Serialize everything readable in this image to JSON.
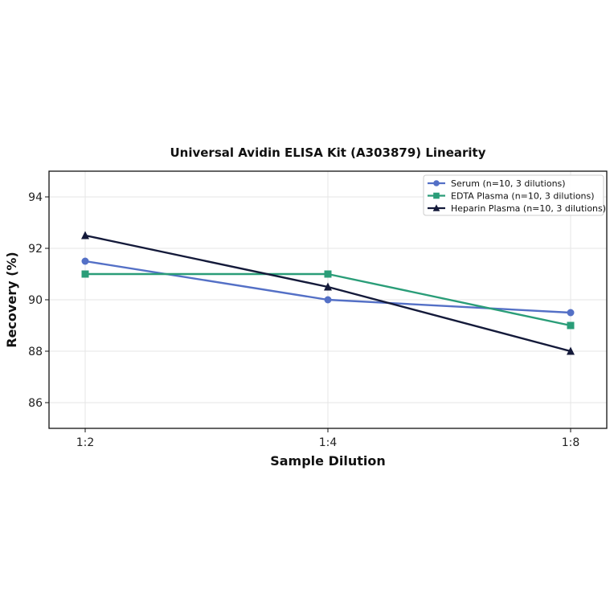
{
  "chart_data": {
    "type": "line",
    "title": "Universal Avidin ELISA Kit (A303879) Linearity",
    "xlabel": "Sample Dilution",
    "ylabel": "Recovery (%)",
    "categories": [
      "1:2",
      "1:4",
      "1:8"
    ],
    "ylim": [
      85,
      95
    ],
    "yticks": [
      86,
      88,
      90,
      92,
      94
    ],
    "grid": true,
    "legend_position": "top-right",
    "series": [
      {
        "name": "Serum (n=10, 3 dilutions)",
        "values": [
          91.5,
          90.0,
          89.5
        ],
        "color": "#5470c6",
        "marker": "circle"
      },
      {
        "name": "EDTA Plasma (n=10, 3 dilutions)",
        "values": [
          91.0,
          91.0,
          89.0
        ],
        "color": "#2a9d78",
        "marker": "square"
      },
      {
        "name": "Heparin Plasma (n=10, 3 dilutions)",
        "values": [
          92.5,
          90.5,
          88.0
        ],
        "color": "#141a3a",
        "marker": "triangle"
      }
    ]
  }
}
